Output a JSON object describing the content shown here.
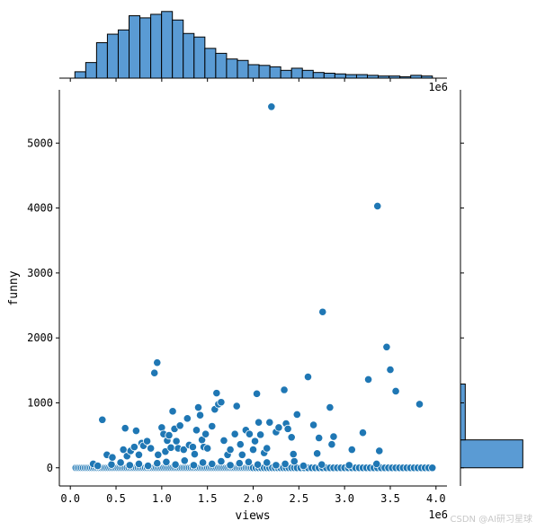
{
  "watermark": "CSDN @AI研习星球",
  "chart_data": {
    "type": "scatter",
    "subtype": "jointplot",
    "xlabel": "views",
    "ylabel": "funny",
    "x_scale_label": "1e6",
    "xlim": [
      -0.12,
      4.12
    ],
    "ylim": [
      -280,
      5820
    ],
    "x_ticks": [
      0.0,
      0.5,
      1.0,
      1.5,
      2.0,
      2.5,
      3.0,
      3.5,
      4.0
    ],
    "x_tick_labels": [
      "0.0",
      "0.5",
      "1.0",
      "1.5",
      "2.0",
      "2.5",
      "3.0",
      "3.5",
      "4.0"
    ],
    "y_ticks": [
      0,
      1000,
      2000,
      3000,
      4000,
      5000
    ],
    "y_tick_labels": [
      "0",
      "1000",
      "2000",
      "3000",
      "4000",
      "5000"
    ],
    "point_color": "#1f77b4",
    "bar_color": "#5a9bd4",
    "grid": false,
    "x_marginal_histogram": {
      "bin_start": 0.05,
      "bin_width": 0.1185,
      "counts": [
        9,
        22,
        50,
        62,
        68,
        88,
        85,
        90,
        94,
        82,
        63,
        58,
        42,
        35,
        27,
        25,
        19,
        18,
        16,
        11,
        14,
        11,
        8,
        7,
        6,
        5,
        5,
        4,
        3,
        3,
        2,
        4,
        3
      ],
      "count_max": 95
    },
    "y_marginal_histogram": {
      "bin_edges": [
        0,
        430,
        1290
      ],
      "counts": [
        130,
        10
      ],
      "count_max": 135
    },
    "points": [
      [
        0.06,
        0
      ],
      [
        0.08,
        0
      ],
      [
        0.1,
        0
      ],
      [
        0.12,
        0
      ],
      [
        0.14,
        0
      ],
      [
        0.16,
        0
      ],
      [
        0.18,
        0
      ],
      [
        0.2,
        0
      ],
      [
        0.22,
        0
      ],
      [
        0.24,
        0
      ],
      [
        0.26,
        0
      ],
      [
        0.28,
        0
      ],
      [
        0.3,
        0
      ],
      [
        0.32,
        0
      ],
      [
        0.34,
        0
      ],
      [
        0.36,
        0
      ],
      [
        0.38,
        0
      ],
      [
        0.4,
        0
      ],
      [
        0.42,
        0
      ],
      [
        0.44,
        0
      ],
      [
        0.46,
        0
      ],
      [
        0.48,
        0
      ],
      [
        0.5,
        0
      ],
      [
        0.52,
        0
      ],
      [
        0.54,
        0
      ],
      [
        0.56,
        0
      ],
      [
        0.58,
        0
      ],
      [
        0.6,
        0
      ],
      [
        0.62,
        0
      ],
      [
        0.64,
        0
      ],
      [
        0.66,
        0
      ],
      [
        0.68,
        0
      ],
      [
        0.7,
        0
      ],
      [
        0.72,
        0
      ],
      [
        0.74,
        0
      ],
      [
        0.76,
        0
      ],
      [
        0.78,
        0
      ],
      [
        0.8,
        0
      ],
      [
        0.82,
        0
      ],
      [
        0.84,
        0
      ],
      [
        0.86,
        0
      ],
      [
        0.88,
        0
      ],
      [
        0.9,
        0
      ],
      [
        0.92,
        0
      ],
      [
        0.94,
        0
      ],
      [
        0.96,
        0
      ],
      [
        0.98,
        0
      ],
      [
        1.0,
        0
      ],
      [
        1.02,
        0
      ],
      [
        1.04,
        0
      ],
      [
        1.06,
        0
      ],
      [
        1.08,
        0
      ],
      [
        1.1,
        0
      ],
      [
        1.12,
        0
      ],
      [
        1.14,
        0
      ],
      [
        1.16,
        0
      ],
      [
        1.18,
        0
      ],
      [
        1.2,
        0
      ],
      [
        1.22,
        0
      ],
      [
        1.24,
        0
      ],
      [
        1.26,
        0
      ],
      [
        1.28,
        0
      ],
      [
        1.3,
        0
      ],
      [
        1.32,
        0
      ],
      [
        1.34,
        0
      ],
      [
        1.36,
        0
      ],
      [
        1.38,
        0
      ],
      [
        1.4,
        0
      ],
      [
        1.42,
        0
      ],
      [
        1.44,
        0
      ],
      [
        1.46,
        0
      ],
      [
        1.48,
        0
      ],
      [
        1.5,
        0
      ],
      [
        1.52,
        0
      ],
      [
        1.54,
        0
      ],
      [
        1.56,
        0
      ],
      [
        1.58,
        0
      ],
      [
        1.6,
        0
      ],
      [
        1.62,
        0
      ],
      [
        1.64,
        0
      ],
      [
        1.66,
        0
      ],
      [
        1.68,
        0
      ],
      [
        1.7,
        0
      ],
      [
        1.72,
        0
      ],
      [
        1.74,
        0
      ],
      [
        1.76,
        0
      ],
      [
        1.78,
        0
      ],
      [
        1.8,
        0
      ],
      [
        1.82,
        0
      ],
      [
        1.84,
        0
      ],
      [
        1.86,
        0
      ],
      [
        1.88,
        0
      ],
      [
        1.9,
        0
      ],
      [
        1.92,
        0
      ],
      [
        1.94,
        0
      ],
      [
        1.96,
        0
      ],
      [
        1.98,
        0
      ],
      [
        2.0,
        0
      ],
      [
        2.03,
        0
      ],
      [
        2.06,
        0
      ],
      [
        2.09,
        0
      ],
      [
        2.12,
        0
      ],
      [
        2.15,
        0
      ],
      [
        2.18,
        0
      ],
      [
        2.21,
        0
      ],
      [
        2.24,
        0
      ],
      [
        2.27,
        0
      ],
      [
        2.3,
        0
      ],
      [
        2.33,
        0
      ],
      [
        2.36,
        0
      ],
      [
        2.39,
        0
      ],
      [
        2.42,
        0
      ],
      [
        2.45,
        0
      ],
      [
        2.48,
        0
      ],
      [
        2.52,
        0
      ],
      [
        2.56,
        0
      ],
      [
        2.6,
        0
      ],
      [
        2.64,
        0
      ],
      [
        2.68,
        0
      ],
      [
        2.72,
        0
      ],
      [
        2.76,
        0
      ],
      [
        2.8,
        0
      ],
      [
        2.84,
        0
      ],
      [
        2.88,
        0
      ],
      [
        2.92,
        0
      ],
      [
        2.96,
        0
      ],
      [
        3.0,
        0
      ],
      [
        3.04,
        0
      ],
      [
        3.08,
        0
      ],
      [
        3.12,
        0
      ],
      [
        3.16,
        0
      ],
      [
        3.2,
        0
      ],
      [
        3.24,
        0
      ],
      [
        3.28,
        0
      ],
      [
        3.32,
        0
      ],
      [
        3.36,
        0
      ],
      [
        3.4,
        0
      ],
      [
        3.44,
        0
      ],
      [
        3.48,
        0
      ],
      [
        3.52,
        0
      ],
      [
        3.56,
        0
      ],
      [
        3.6,
        0
      ],
      [
        3.64,
        0
      ],
      [
        3.68,
        0
      ],
      [
        3.72,
        0
      ],
      [
        3.76,
        0
      ],
      [
        3.8,
        0
      ],
      [
        3.84,
        0
      ],
      [
        3.88,
        0
      ],
      [
        3.92,
        0
      ],
      [
        3.96,
        0
      ],
      [
        0.25,
        60
      ],
      [
        0.3,
        30
      ],
      [
        0.45,
        50
      ],
      [
        0.55,
        80
      ],
      [
        0.65,
        40
      ],
      [
        0.75,
        60
      ],
      [
        0.85,
        30
      ],
      [
        0.95,
        70
      ],
      [
        1.05,
        90
      ],
      [
        1.15,
        50
      ],
      [
        1.25,
        110
      ],
      [
        1.35,
        40
      ],
      [
        1.45,
        80
      ],
      [
        1.55,
        60
      ],
      [
        1.65,
        100
      ],
      [
        1.75,
        40
      ],
      [
        1.85,
        70
      ],
      [
        1.95,
        90
      ],
      [
        2.05,
        50
      ],
      [
        2.15,
        80
      ],
      [
        2.25,
        40
      ],
      [
        2.35,
        60
      ],
      [
        2.45,
        100
      ],
      [
        2.55,
        30
      ],
      [
        2.75,
        50
      ],
      [
        3.05,
        40
      ],
      [
        3.35,
        60
      ],
      [
        0.35,
        740
      ],
      [
        0.4,
        200
      ],
      [
        0.46,
        160
      ],
      [
        0.58,
        280
      ],
      [
        0.6,
        610
      ],
      [
        0.62,
        180
      ],
      [
        0.66,
        260
      ],
      [
        0.7,
        320
      ],
      [
        0.72,
        570
      ],
      [
        0.75,
        200
      ],
      [
        0.78,
        380
      ],
      [
        0.8,
        340
      ],
      [
        0.84,
        410
      ],
      [
        0.88,
        300
      ],
      [
        0.92,
        1460
      ],
      [
        0.95,
        1620
      ],
      [
        0.96,
        200
      ],
      [
        1.0,
        620
      ],
      [
        1.02,
        520
      ],
      [
        1.04,
        250
      ],
      [
        1.06,
        420
      ],
      [
        1.08,
        500
      ],
      [
        1.1,
        310
      ],
      [
        1.12,
        870
      ],
      [
        1.14,
        600
      ],
      [
        1.16,
        410
      ],
      [
        1.18,
        300
      ],
      [
        1.2,
        650
      ],
      [
        1.24,
        280
      ],
      [
        1.28,
        760
      ],
      [
        1.3,
        350
      ],
      [
        1.34,
        320
      ],
      [
        1.36,
        210
      ],
      [
        1.38,
        580
      ],
      [
        1.4,
        930
      ],
      [
        1.42,
        810
      ],
      [
        1.44,
        430
      ],
      [
        1.46,
        320
      ],
      [
        1.48,
        520
      ],
      [
        1.5,
        300
      ],
      [
        1.55,
        640
      ],
      [
        1.58,
        900
      ],
      [
        1.6,
        1150
      ],
      [
        1.62,
        980
      ],
      [
        1.65,
        1010
      ],
      [
        1.68,
        420
      ],
      [
        1.72,
        200
      ],
      [
        1.75,
        280
      ],
      [
        1.8,
        520
      ],
      [
        1.82,
        950
      ],
      [
        1.86,
        360
      ],
      [
        1.88,
        200
      ],
      [
        1.92,
        580
      ],
      [
        1.96,
        520
      ],
      [
        2.0,
        280
      ],
      [
        2.02,
        410
      ],
      [
        2.04,
        1140
      ],
      [
        2.06,
        700
      ],
      [
        2.08,
        510
      ],
      [
        2.12,
        230
      ],
      [
        2.15,
        300
      ],
      [
        2.18,
        700
      ],
      [
        2.2,
        5560
      ],
      [
        2.25,
        550
      ],
      [
        2.28,
        620
      ],
      [
        2.34,
        1200
      ],
      [
        2.36,
        680
      ],
      [
        2.38,
        600
      ],
      [
        2.42,
        470
      ],
      [
        2.44,
        210
      ],
      [
        2.48,
        820
      ],
      [
        2.6,
        1400
      ],
      [
        2.66,
        660
      ],
      [
        2.7,
        220
      ],
      [
        2.72,
        460
      ],
      [
        2.76,
        2400
      ],
      [
        2.84,
        930
      ],
      [
        2.86,
        360
      ],
      [
        2.88,
        480
      ],
      [
        3.08,
        280
      ],
      [
        3.2,
        540
      ],
      [
        3.26,
        1360
      ],
      [
        3.36,
        4030
      ],
      [
        3.38,
        260
      ],
      [
        3.46,
        1860
      ],
      [
        3.5,
        1510
      ],
      [
        3.56,
        1180
      ],
      [
        3.82,
        980
      ]
    ]
  }
}
